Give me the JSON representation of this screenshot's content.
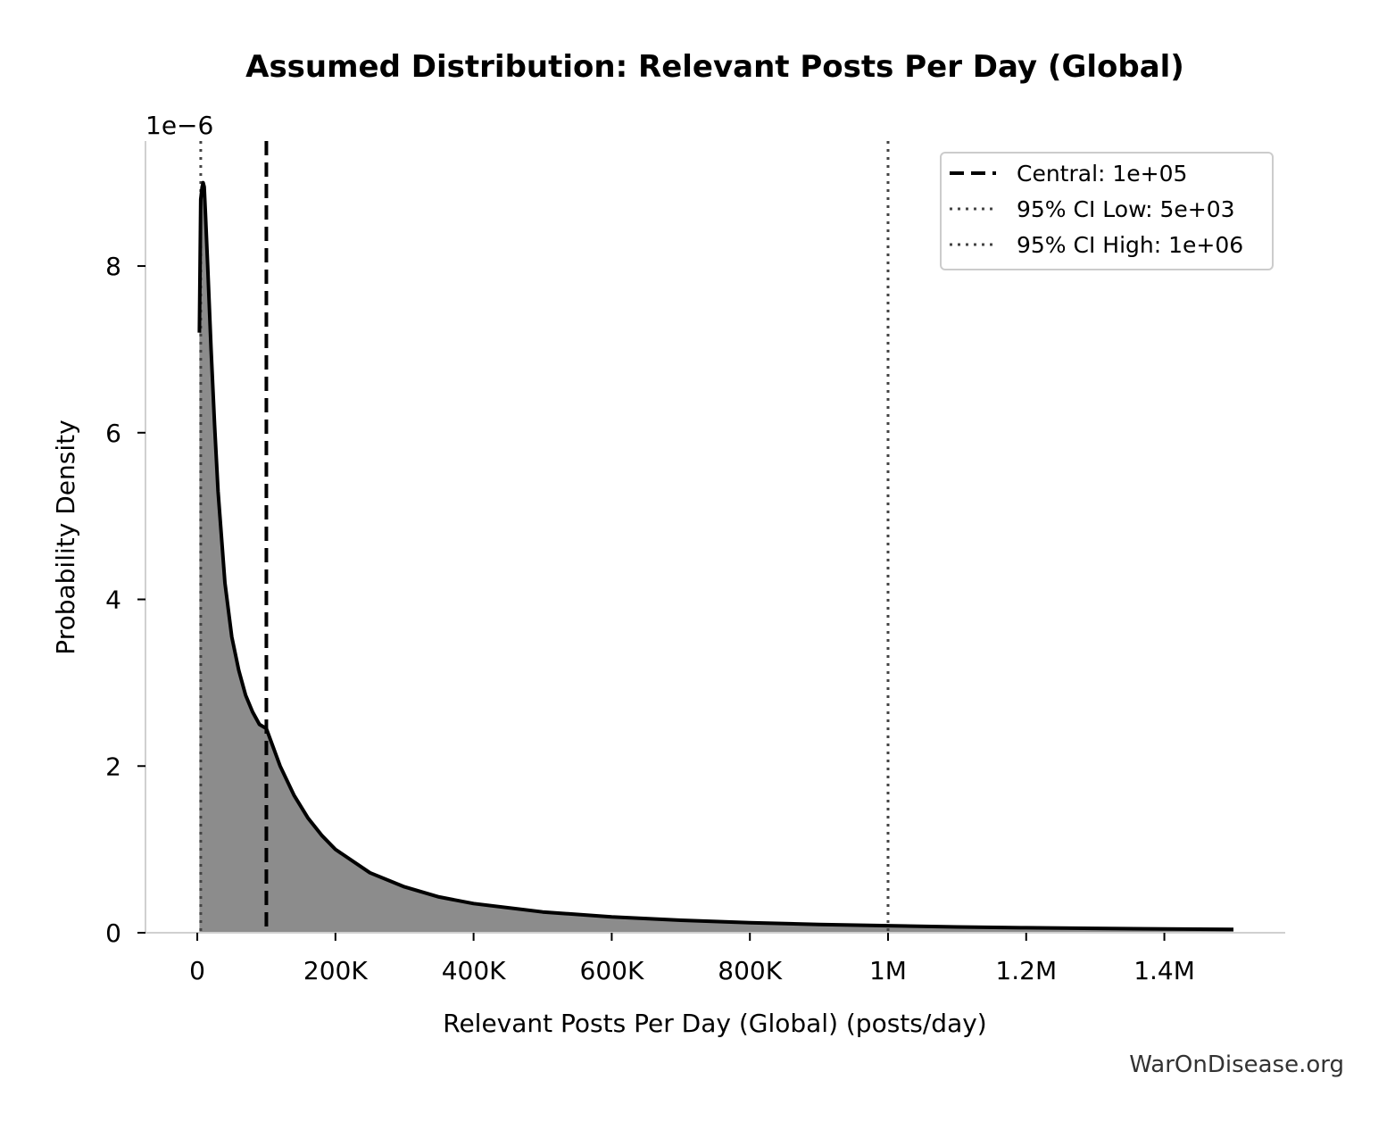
{
  "chart_data": {
    "type": "area",
    "title": "Assumed Distribution: Relevant Posts Per Day (Global)",
    "xlabel": "Relevant Posts Per Day (Global) (posts/day)",
    "ylabel": "Probability Density",
    "y_offset_label": "1e−6",
    "xlim": [
      -75000,
      1575000
    ],
    "ylim": [
      0,
      9.5
    ],
    "x_ticks": [
      {
        "value": 0,
        "label": "0"
      },
      {
        "value": 200000,
        "label": "200K"
      },
      {
        "value": 400000,
        "label": "400K"
      },
      {
        "value": 600000,
        "label": "600K"
      },
      {
        "value": 800000,
        "label": "800K"
      },
      {
        "value": 1000000,
        "label": "1M"
      },
      {
        "value": 1200000,
        "label": "1.2M"
      },
      {
        "value": 1400000,
        "label": "1.4M"
      }
    ],
    "y_ticks": [
      {
        "value": 0,
        "label": "0"
      },
      {
        "value": 2,
        "label": "2"
      },
      {
        "value": 4,
        "label": "4"
      },
      {
        "value": 6,
        "label": "6"
      },
      {
        "value": 8,
        "label": "8"
      }
    ],
    "series": [
      {
        "x": [
          3000,
          5000,
          7000,
          8500,
          10000,
          12000,
          15000,
          20000,
          25000,
          30000,
          40000,
          50000,
          60000,
          70000,
          80000,
          90000,
          100000,
          120000,
          140000,
          160000,
          180000,
          200000,
          250000,
          300000,
          350000,
          400000,
          500000,
          600000,
          700000,
          800000,
          900000,
          1000000,
          1100000,
          1200000,
          1300000,
          1400000,
          1500000
        ],
        "y": [
          7.2,
          8.8,
          8.95,
          9.0,
          8.95,
          8.6,
          8.0,
          7.0,
          6.1,
          5.3,
          4.2,
          3.55,
          3.15,
          2.85,
          2.65,
          2.5,
          2.45,
          2.0,
          1.65,
          1.38,
          1.17,
          1.0,
          0.72,
          0.55,
          0.43,
          0.35,
          0.25,
          0.19,
          0.15,
          0.12,
          0.1,
          0.085,
          0.07,
          0.06,
          0.052,
          0.045,
          0.04
        ],
        "line_color": "#000000",
        "fill_color": "#8c8c8c"
      }
    ],
    "reference_lines": [
      {
        "value": 100000,
        "label": "Central: 1e+05",
        "style": "dashed",
        "color": "#000000"
      },
      {
        "value": 5000,
        "label": "95% CI Low: 5e+03",
        "style": "dotted",
        "color": "#444444"
      },
      {
        "value": 1000000,
        "label": "95% CI High: 1e+06",
        "style": "dotted",
        "color": "#444444"
      }
    ],
    "legend_position": "top-right",
    "grid": false
  },
  "watermark": "WarOnDisease.org"
}
